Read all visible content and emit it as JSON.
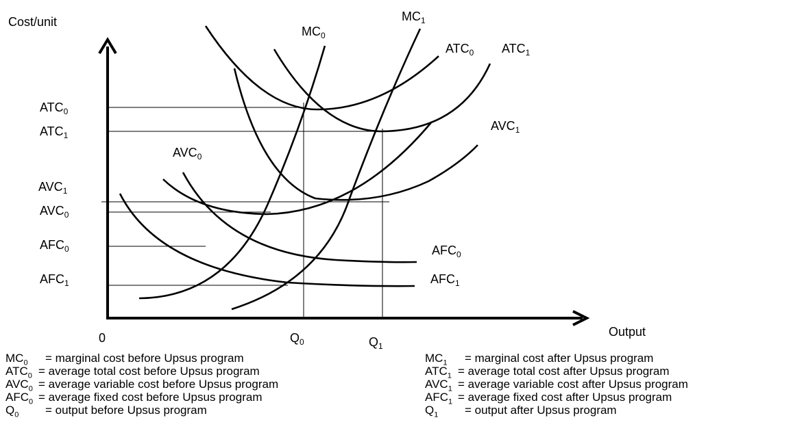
{
  "axes": {
    "y_label": "Cost/unit",
    "x_label": "Output",
    "origin": "0"
  },
  "curves": {
    "mc0": {
      "name": "MC",
      "sub": "0"
    },
    "mc1": {
      "name": "MC",
      "sub": "1"
    },
    "atc0": {
      "name": "ATC",
      "sub": "0"
    },
    "atc1": {
      "name": "ATC",
      "sub": "1"
    },
    "avc0": {
      "name": "AVC",
      "sub": "0"
    },
    "avc1": {
      "name": "AVC",
      "sub": "1"
    },
    "afc0": {
      "name": "AFC",
      "sub": "0"
    },
    "afc1": {
      "name": "AFC",
      "sub": "1"
    }
  },
  "y_ticks": {
    "atc0": {
      "name": "ATC",
      "sub": "0"
    },
    "atc1": {
      "name": "ATC",
      "sub": "1"
    },
    "avc1": {
      "name": "AVC",
      "sub": "1"
    },
    "avc0": {
      "name": "AVC",
      "sub": "0"
    },
    "afc0": {
      "name": "AFC",
      "sub": "0"
    },
    "afc1": {
      "name": "AFC",
      "sub": "1"
    }
  },
  "x_ticks": {
    "q0": {
      "name": "Q",
      "sub": "0"
    },
    "q1": {
      "name": "Q",
      "sub": "1"
    }
  },
  "legend": {
    "left": [
      {
        "sym": "MC",
        "sub": "0",
        "def": "= marginal cost before Upsus program"
      },
      {
        "sym": "ATC",
        "sub": "0",
        "def": "= average total cost before Upsus program"
      },
      {
        "sym": "AVC",
        "sub": "0",
        "def": "= average variable cost before Upsus program"
      },
      {
        "sym": "AFC",
        "sub": "0",
        "def": "= average fixed cost before Upsus program"
      },
      {
        "sym": "Q",
        "sub": "0",
        "def": "= output before Upsus program"
      }
    ],
    "right": [
      {
        "sym": "MC",
        "sub": "1",
        "def": "= marginal cost after Upsus program"
      },
      {
        "sym": "ATC",
        "sub": "1",
        "def": "= average total cost after Upsus program"
      },
      {
        "sym": "AVC",
        "sub": "1",
        "def": "= average variable cost after Upsus program"
      },
      {
        "sym": "AFC",
        "sub": "1",
        "def": "= average fixed cost after Upsus program"
      },
      {
        "sym": "Q",
        "sub": "1",
        "def": "= output after Upsus program"
      }
    ]
  }
}
